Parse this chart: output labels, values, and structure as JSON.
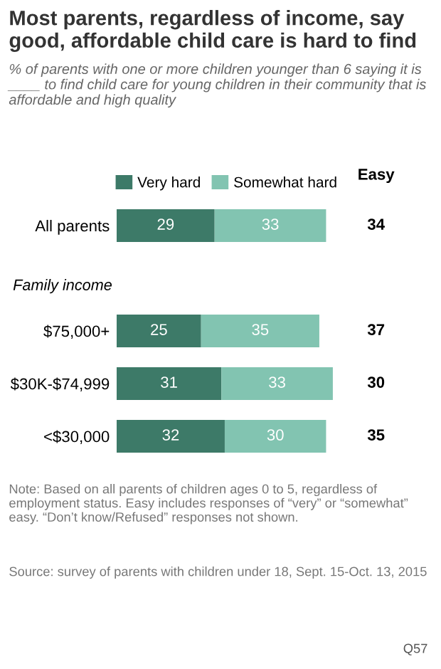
{
  "chart_data": {
    "type": "bar",
    "orientation": "horizontal",
    "stacked": true,
    "data_labels": true,
    "tick_labels": "y",
    "grid": false,
    "legend": "top",
    "title": "Most parents, regardless of income, say good, affordable child care is hard to find",
    "subtitle": "% of parents with one or more children younger than 6 saying it is ____ to find child care for young children in their community that is affordable and high quality",
    "categories": [
      "All parents",
      null,
      "$75,000+",
      "$30K-$74,999",
      "<$30,000"
    ],
    "series": [
      {
        "name": "Very hard",
        "color": "#3d7a68",
        "values": [
          29,
          null,
          25,
          31,
          32
        ]
      },
      {
        "name": "Somewhat hard",
        "color": "#82c4b1",
        "values": [
          33,
          null,
          35,
          33,
          30
        ]
      }
    ],
    "annotations": [
      "Family income",
      "Easy",
      "34",
      "37",
      "30",
      "35",
      "Note: Based on all parents of children ages 0 to 5, regardless of employment status. Easy includes responses of “very” or “somewhat” easy. “Don’t know/Refused” responses not shown.",
      "Source: survey of parents with children under 18, Sept. 15-Oct. 13, 2015",
      "Q57"
    ]
  }
}
